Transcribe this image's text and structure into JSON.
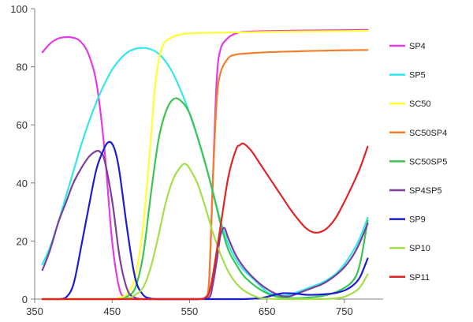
{
  "chart_data": {
    "type": "line",
    "title": "",
    "xlabel": "",
    "ylabel": "",
    "xlim": [
      350,
      800
    ],
    "ylim": [
      0,
      100
    ],
    "x_ticks": [
      350,
      450,
      550,
      650,
      750
    ],
    "y_ticks": [
      0,
      20,
      40,
      60,
      80,
      100
    ],
    "grid": false,
    "legend": "right",
    "series": [
      {
        "name": "SP4",
        "color": "#e43be4",
        "x": [
          360,
          370,
          380,
          390,
          400,
          410,
          420,
          430,
          440,
          450,
          460,
          470,
          480,
          500,
          520,
          540,
          560,
          570,
          575,
          580,
          585,
          590,
          600,
          610,
          620,
          650,
          700,
          750,
          780
        ],
        "y": [
          85,
          88,
          89.7,
          90.2,
          90,
          88.5,
          84,
          74,
          52,
          20,
          3,
          0.5,
          0,
          0,
          0,
          0,
          0,
          0.5,
          5,
          40,
          75,
          86,
          90,
          91.5,
          92,
          92.3,
          92.5,
          92.6,
          92.7
        ]
      },
      {
        "name": "SP5",
        "color": "#33e8e8",
        "x": [
          360,
          370,
          380,
          390,
          400,
          410,
          420,
          430,
          440,
          450,
          460,
          470,
          480,
          490,
          500,
          510,
          520,
          530,
          540,
          550,
          560,
          570,
          580,
          590,
          600,
          610,
          620,
          630,
          640,
          650,
          660,
          670,
          680,
          690,
          700,
          710,
          720,
          730,
          740,
          750,
          760,
          770,
          780
        ],
        "y": [
          12,
          18,
          26,
          35,
          44,
          53,
          61,
          68,
          74,
          79,
          82.5,
          85,
          86.2,
          86.5,
          86,
          84.5,
          81.5,
          77,
          71,
          64,
          56,
          47,
          37,
          27,
          19,
          13.5,
          10,
          7.5,
          5,
          2.5,
          1.5,
          1.2,
          1.6,
          2.5,
          3.5,
          4.5,
          5.5,
          7,
          9,
          12,
          16,
          21,
          28
        ]
      },
      {
        "name": "SC50",
        "color": "#ffff33",
        "x": [
          360,
          400,
          450,
          460,
          470,
          480,
          490,
          500,
          505,
          510,
          515,
          520,
          530,
          540,
          560,
          600,
          650,
          700,
          750,
          780
        ],
        "y": [
          0,
          0,
          0,
          0.5,
          2,
          8,
          25,
          55,
          72,
          82,
          87,
          89,
          90.5,
          91.2,
          91.6,
          91.8,
          92,
          92.2,
          92.3,
          92.4
        ]
      },
      {
        "name": "SC50SP4",
        "color": "#f07f2b",
        "x": [
          360,
          400,
          500,
          560,
          570,
          575,
          580,
          585,
          590,
          600,
          610,
          620,
          650,
          700,
          750,
          780
        ],
        "y": [
          0,
          0,
          0,
          0,
          0.5,
          5,
          40,
          68,
          78,
          83,
          84.2,
          84.5,
          85,
          85.4,
          85.7,
          85.8
        ]
      },
      {
        "name": "SC50SP5",
        "color": "#3cc452",
        "x": [
          360,
          440,
          460,
          470,
          480,
          490,
          500,
          510,
          520,
          530,
          540,
          550,
          560,
          570,
          580,
          590,
          600,
          610,
          620,
          630,
          640,
          650,
          660,
          670,
          680,
          690,
          700,
          720,
          740,
          760,
          770,
          780
        ],
        "y": [
          0,
          0,
          0,
          1,
          4,
          15,
          36,
          55,
          65,
          69,
          68,
          64,
          56,
          47,
          37,
          26,
          17,
          12,
          8,
          5.5,
          3.5,
          2,
          1,
          0.5,
          0.3,
          0.3,
          0.5,
          1,
          2.5,
          6,
          12,
          27
        ]
      },
      {
        "name": "SP4SP5",
        "color": "#7b3f9a",
        "x": [
          360,
          370,
          380,
          390,
          400,
          410,
          420,
          430,
          435,
          440,
          450,
          460,
          470,
          480,
          490,
          500,
          560,
          575,
          580,
          585,
          590,
          595,
          600,
          610,
          620,
          630,
          640,
          650,
          660,
          670,
          680,
          690,
          700,
          710,
          720,
          730,
          740,
          750,
          760,
          770,
          780
        ],
        "y": [
          10,
          17,
          26,
          33,
          40,
          45,
          49,
          51,
          50.5,
          48,
          34,
          14,
          3,
          0.5,
          0,
          0,
          0,
          0.5,
          5,
          13,
          22,
          24.5,
          21,
          15,
          11,
          8,
          5.5,
          3.5,
          2,
          1,
          1,
          2,
          3,
          4,
          5,
          6.5,
          8.5,
          11,
          14.5,
          19.5,
          26
        ]
      },
      {
        "name": "SP9",
        "color": "#1c1cd4",
        "x": [
          360,
          380,
          390,
          400,
          410,
          420,
          430,
          440,
          445,
          450,
          455,
          460,
          470,
          480,
          490,
          500,
          510,
          520,
          560,
          600,
          620,
          640,
          650,
          660,
          670,
          680,
          690,
          700,
          710,
          720,
          730,
          740,
          750,
          760,
          770,
          780
        ],
        "y": [
          0,
          0,
          0.5,
          5,
          18,
          32,
          45,
          52,
          54,
          53.5,
          50,
          43,
          23,
          7,
          1.5,
          0.2,
          0,
          0,
          0,
          0,
          0,
          0.3,
          0.8,
          1.5,
          2,
          2,
          1.8,
          1.5,
          1.5,
          1.6,
          1.8,
          2.2,
          3,
          4.5,
          7.5,
          14
        ]
      },
      {
        "name": "SP10",
        "color": "#a4e04a",
        "x": [
          360,
          450,
          470,
          480,
          490,
          500,
          510,
          520,
          530,
          540,
          545,
          550,
          560,
          570,
          580,
          590,
          600,
          610,
          620,
          630,
          640,
          650,
          670,
          700,
          720,
          740,
          750,
          760,
          770,
          780
        ],
        "y": [
          0,
          0,
          0.3,
          1.5,
          4,
          11,
          22,
          34,
          42,
          46,
          46.5,
          45,
          40,
          32,
          23,
          15.5,
          9.5,
          5.5,
          3,
          1.5,
          0.5,
          0.2,
          0,
          0,
          0,
          0.3,
          0.8,
          2,
          4,
          8.5
        ]
      },
      {
        "name": "SP11",
        "color": "#e02424",
        "x": [
          360,
          500,
          560,
          570,
          575,
          580,
          590,
          600,
          610,
          615,
          620,
          630,
          640,
          650,
          660,
          670,
          680,
          690,
          700,
          710,
          720,
          730,
          740,
          750,
          760,
          770,
          780
        ],
        "y": [
          0,
          0,
          0,
          0.5,
          2,
          8,
          25,
          42,
          51.5,
          53,
          53.5,
          51,
          47,
          43,
          39,
          35,
          31,
          27.5,
          24.5,
          23,
          23.2,
          25,
          28.5,
          33.5,
          39,
          45,
          52.5
        ]
      }
    ]
  }
}
